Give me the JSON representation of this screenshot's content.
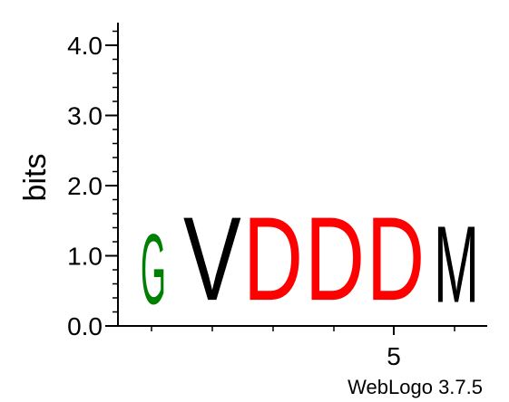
{
  "chart_data": {
    "type": "sequence-logo",
    "ylabel": "bits",
    "ylim": [
      0,
      4.3
    ],
    "y_ticks": [
      "0.0",
      "1.0",
      "2.0",
      "3.0",
      "4.0"
    ],
    "y_tick_values": [
      0,
      1,
      2,
      3,
      4
    ],
    "x_tick_label": "5",
    "positions": [
      {
        "position": 1,
        "letter": "G",
        "bits": 1.6,
        "color": "#008000"
      },
      {
        "position": 2,
        "letter": "V",
        "bits": 1.9,
        "color": "#000000"
      },
      {
        "position": 3,
        "letter": "D",
        "bits": 1.9,
        "color": "#ff0000"
      },
      {
        "position": 4,
        "letter": "D",
        "bits": 1.9,
        "color": "#ff0000"
      },
      {
        "position": 5,
        "letter": "D",
        "bits": 1.9,
        "color": "#ff0000"
      },
      {
        "position": 6,
        "letter": "M",
        "bits": 1.75,
        "color": "#000000"
      }
    ]
  },
  "footer": {
    "credit": "WebLogo 3.7.5"
  }
}
